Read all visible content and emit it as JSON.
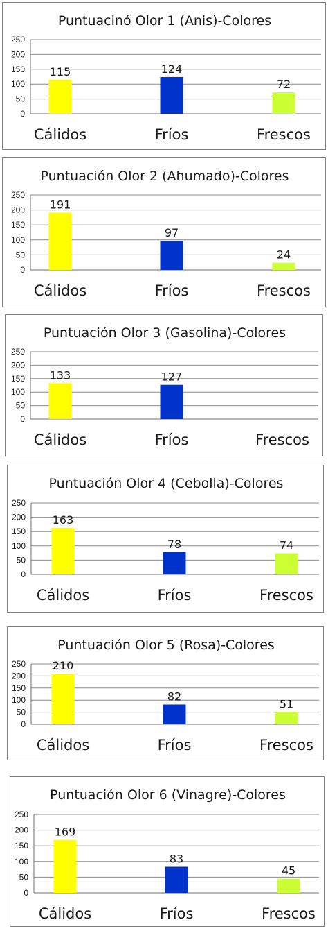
{
  "colors": {
    "Cálidos": "#ffff00",
    "Fríos": "#0033cc",
    "Frescos": "#ccff33"
  },
  "chart_data": [
    {
      "type": "bar",
      "title": "Puntuacinó Olor 1 (Anis)-Colores",
      "categories": [
        "Cálidos",
        "Fríos",
        "Frescos"
      ],
      "values": [
        115,
        124,
        72
      ],
      "data_labels": [
        "115",
        "124",
        "72"
      ],
      "yticks": [
        "0",
        "50",
        "100",
        "150",
        "200",
        "250"
      ],
      "ylim": [
        0,
        250
      ],
      "grid": true,
      "legend": "none"
    },
    {
      "type": "bar",
      "title": "Puntuación Olor 2 (Ahumado)-Colores",
      "categories": [
        "Cálidos",
        "Fríos",
        "Frescos"
      ],
      "values": [
        191,
        97,
        24
      ],
      "data_labels": [
        "191",
        "97",
        "24"
      ],
      "yticks": [
        "0",
        "50",
        "100",
        "150",
        "200",
        "250"
      ],
      "ylim": [
        0,
        250
      ],
      "grid": true,
      "legend": "none"
    },
    {
      "type": "bar",
      "title": "Puntuación Olor 3 (Gasolina)-Colores",
      "categories": [
        "Cálidos",
        "Fríos",
        "Frescos"
      ],
      "values": [
        133,
        127,
        0
      ],
      "data_labels": [
        "133",
        "127",
        ""
      ],
      "yticks": [
        "0",
        "50",
        "100",
        "150",
        "200",
        "250"
      ],
      "ylim": [
        0,
        250
      ],
      "grid": true,
      "legend": "none"
    },
    {
      "type": "bar",
      "title": "Puntuación Olor 4 (Cebolla)-Colores",
      "categories": [
        "Cálidos",
        "Fríos",
        "Frescos"
      ],
      "values": [
        163,
        78,
        74
      ],
      "data_labels": [
        "163",
        "78",
        "74"
      ],
      "yticks": [
        "0",
        "50",
        "100",
        "150",
        "200",
        "250"
      ],
      "ylim": [
        0,
        250
      ],
      "grid": true,
      "legend": "none"
    },
    {
      "type": "bar",
      "title": "Puntuación Olor 5 (Rosa)-Colores",
      "categories": [
        "Cálidos",
        "Fríos",
        "Frescos"
      ],
      "values": [
        210,
        82,
        51
      ],
      "data_labels": [
        "210",
        "82",
        "51"
      ],
      "yticks": [
        "0",
        "50",
        "100",
        "150",
        "200",
        "250"
      ],
      "ylim": [
        0,
        250
      ],
      "grid": true,
      "legend": "none"
    },
    {
      "type": "bar",
      "title": "Puntuación Olor 6 (Vinagre)-Colores",
      "categories": [
        "Cálidos",
        "Fríos",
        "Frescos"
      ],
      "values": [
        169,
        83,
        45
      ],
      "data_labels": [
        "169",
        "83",
        "45"
      ],
      "yticks": [
        "0",
        "50",
        "100",
        "150",
        "200",
        "250"
      ],
      "ylim": [
        0,
        250
      ],
      "grid": true,
      "legend": "none"
    }
  ]
}
